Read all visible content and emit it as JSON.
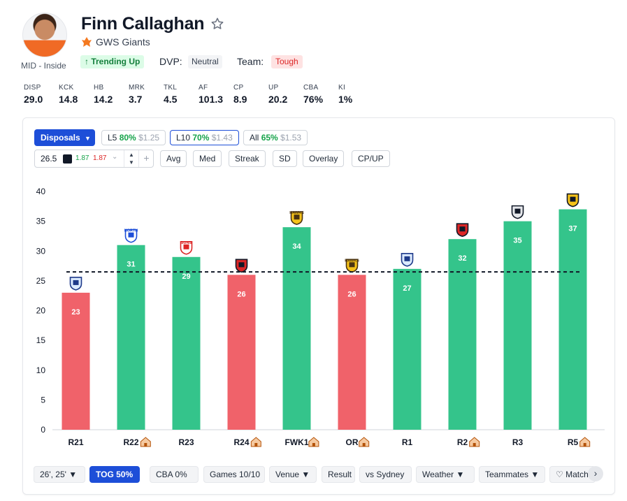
{
  "player": {
    "name": "Finn Callaghan",
    "role": "MID - Inside",
    "team": "GWS Giants",
    "trend": "↑ Trending Up",
    "dvp_label": "DVP:",
    "dvp_value": "Neutral",
    "team_label": "Team:",
    "team_value": "Tough"
  },
  "stats": [
    {
      "label": "DISP",
      "value": "29.0"
    },
    {
      "label": "KCK",
      "value": "14.8"
    },
    {
      "label": "HB",
      "value": "14.2"
    },
    {
      "label": "MRK",
      "value": "3.7"
    },
    {
      "label": "TKL",
      "value": "4.5"
    },
    {
      "label": "AF",
      "value": "101.3"
    },
    {
      "label": "CP",
      "value": "8.9"
    },
    {
      "label": "UP",
      "value": "20.2"
    },
    {
      "label": "CBA",
      "value": "76%"
    },
    {
      "label": "KI",
      "value": "1%"
    }
  ],
  "controls": {
    "stat_select": "Disposals",
    "windows": [
      {
        "label": "L5",
        "pct": "80%",
        "price": "$1.25"
      },
      {
        "label": "L10",
        "pct": "70%",
        "price": "$1.43"
      },
      {
        "label": "All",
        "pct": "65%",
        "price": "$1.53"
      }
    ],
    "line_value": "26.5",
    "odds_over": "1.87",
    "odds_under": "1.87",
    "toggles": [
      "Avg",
      "Med",
      "Streak",
      "SD",
      "Overlay",
      "CP/UP"
    ]
  },
  "chart_data": {
    "type": "bar",
    "title": "",
    "xlabel": "",
    "ylabel": "Disposals",
    "ylim": [
      0,
      40
    ],
    "yticks": [
      0,
      5,
      10,
      15,
      20,
      25,
      30,
      35,
      40
    ],
    "threshold": 26.5,
    "categories": [
      "R21",
      "R22",
      "R23",
      "R24",
      "FWK1",
      "OR",
      "R1",
      "R2",
      "R3",
      "R5"
    ],
    "home": [
      false,
      true,
      false,
      true,
      true,
      true,
      false,
      true,
      false,
      true
    ],
    "values": [
      23,
      31,
      29,
      26,
      34,
      26,
      27,
      32,
      35,
      37
    ],
    "opponents": [
      "Western Bulldogs",
      "North Melbourne",
      "Gold Coast Suns",
      "St Kilda",
      "Hawthorn",
      "Hawthorn",
      "Western Bulldogs",
      "St Kilda",
      "Collingwood",
      "Richmond"
    ],
    "opponent_logo_text": [
      "",
      "NORTH",
      "SUNS",
      "",
      "HAWKS",
      "HAWKS",
      "",
      "",
      "",
      ""
    ],
    "colors": {
      "over": "#34c48b",
      "under": "#f0626a",
      "threshold": "#111827"
    }
  },
  "filters": [
    {
      "label": "26', 25' ▼",
      "active": false
    },
    {
      "label": "TOG 50%",
      "active": true
    },
    {
      "label": "CBA 0%",
      "active": false
    },
    {
      "label": "Games 10/10",
      "active": false
    },
    {
      "label": "Venue ▼",
      "active": false
    },
    {
      "label": "Result",
      "active": false
    },
    {
      "label": "vs Sydney",
      "active": false
    },
    {
      "label": "Weather ▼",
      "active": false
    },
    {
      "label": "Teammates ▼",
      "active": false
    },
    {
      "label": "♡ Matchu",
      "active": false
    }
  ],
  "icons": {
    "star": "star-outline-icon",
    "chevron": "chevron-down-icon",
    "home": "home-icon",
    "next": "chevron-right-icon"
  }
}
